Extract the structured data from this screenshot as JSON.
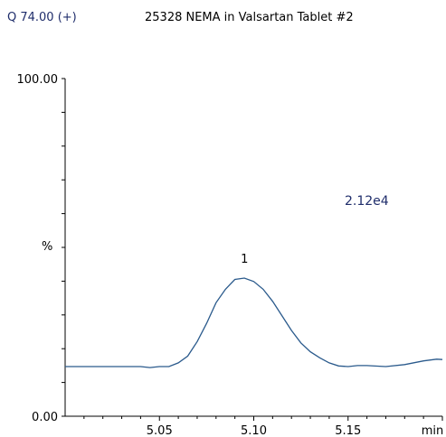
{
  "header": {
    "mode_label": "Q 74.00 (+)",
    "title": "25328  NEMA in Valsartan Tablet #2"
  },
  "colors": {
    "trace": "#2a5a8c",
    "axis": "#000000",
    "header_text": "#1f2d6b"
  },
  "chart_data": {
    "type": "line",
    "title": "25328  NEMA in Valsartan Tablet #2",
    "xlabel": "min",
    "ylabel": "%",
    "xlim": [
      5.0,
      5.2
    ],
    "ylim": [
      0,
      100
    ],
    "x_ticks": [
      "5.05",
      "5.10",
      "5.15",
      "min"
    ],
    "x_tick_values": [
      5.05,
      5.1,
      5.15,
      5.2
    ],
    "y_tick_labels": [
      "0.00",
      "100.00"
    ],
    "y_mid_label": "%",
    "intensity_label": "2.12e4",
    "peak_label": "1",
    "peak_x": 5.095,
    "peak_y": 36.5,
    "grid": false,
    "series": [
      {
        "x": [
          5.0,
          5.02,
          5.04,
          5.045,
          5.05,
          5.055,
          5.06,
          5.065,
          5.07,
          5.075,
          5.08,
          5.085,
          5.09,
          5.095,
          5.1,
          5.105,
          5.11,
          5.115,
          5.12,
          5.125,
          5.13,
          5.135,
          5.14,
          5.145,
          5.15,
          5.155,
          5.16,
          5.17,
          5.18,
          5.19,
          5.197,
          5.2
        ],
        "y": [
          14.7,
          14.7,
          14.7,
          14.4,
          14.7,
          14.7,
          15.8,
          17.8,
          22.1,
          27.5,
          33.6,
          37.6,
          40.5,
          40.9,
          39.9,
          37.6,
          34.0,
          29.7,
          25.4,
          21.7,
          19.1,
          17.3,
          15.8,
          14.9,
          14.7,
          15.0,
          15.0,
          14.7,
          15.3,
          16.4,
          16.9,
          16.8
        ]
      }
    ]
  }
}
